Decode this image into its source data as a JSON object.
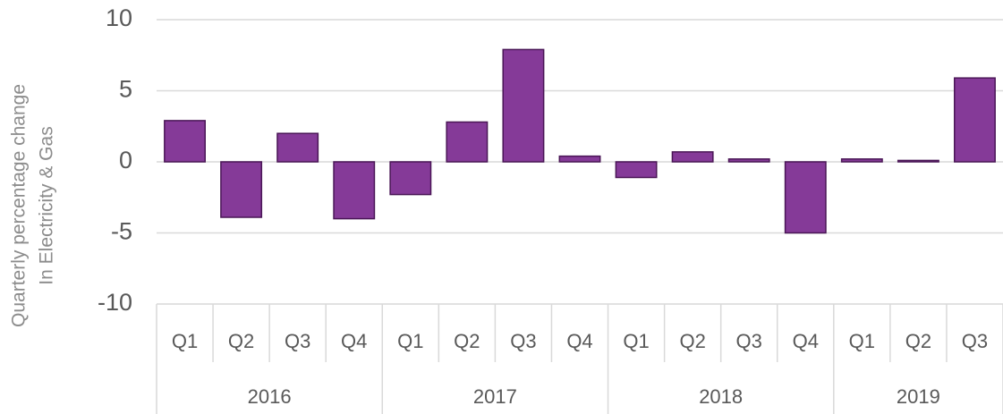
{
  "chart_data": {
    "type": "bar",
    "ylabel": [
      "Quarterly percentage change",
      "In Electricity & Gas"
    ],
    "groups": [
      {
        "label": "2016",
        "categories": [
          "Q1",
          "Q2",
          "Q3",
          "Q4"
        ],
        "values": [
          2.9,
          -3.9,
          2.0,
          -4.0
        ]
      },
      {
        "label": "2017",
        "categories": [
          "Q1",
          "Q2",
          "Q3",
          "Q4"
        ],
        "values": [
          -2.3,
          2.8,
          7.9,
          0.4
        ]
      },
      {
        "label": "2018",
        "categories": [
          "Q1",
          "Q2",
          "Q3",
          "Q4"
        ],
        "values": [
          -1.1,
          0.7,
          0.2,
          -5.0
        ]
      },
      {
        "label": "2019",
        "categories": [
          "Q1",
          "Q2",
          "Q3"
        ],
        "values": [
          0.2,
          0.1,
          5.9
        ]
      }
    ],
    "color": "#853a98",
    "ylim": [
      -10,
      10
    ],
    "yticks": [
      -10,
      -5,
      0,
      5,
      10
    ],
    "grid": true
  }
}
